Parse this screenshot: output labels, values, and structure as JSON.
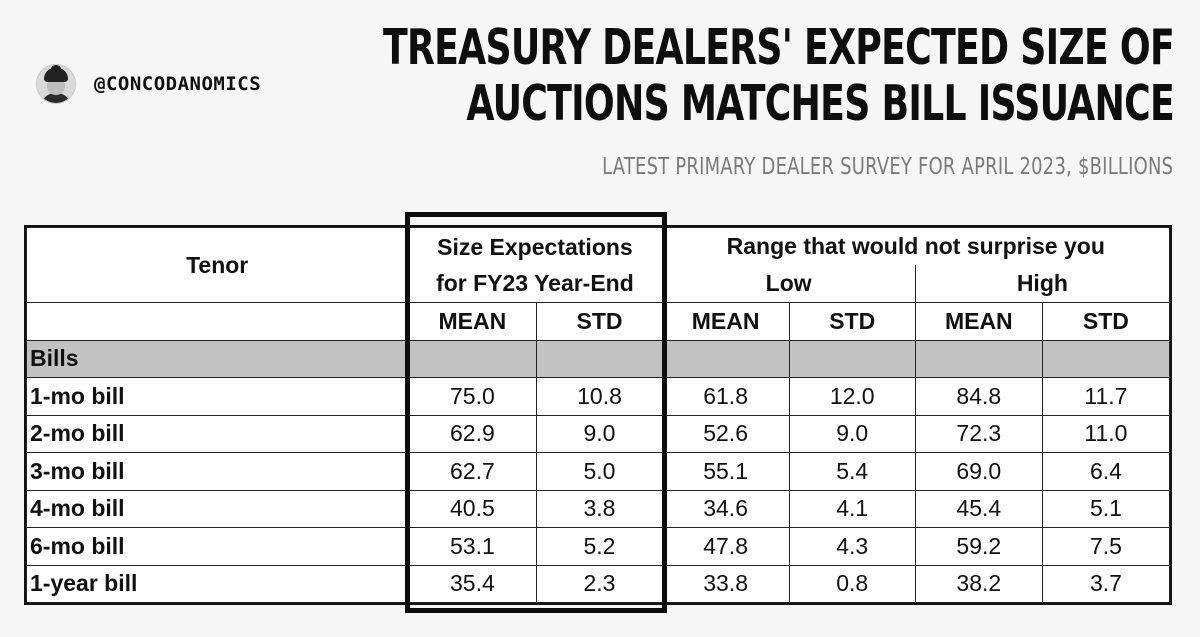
{
  "handle": "@CONCODANOMICS",
  "title_line1": "TREASURY DEALERS' EXPECTED SIZE OF",
  "title_line2": "AUCTIONS MATCHES BILL ISSUANCE",
  "subtitle": "LATEST PRIMARY DEALER SURVEY FOR APRIL 2023, $BILLIONS",
  "table": {
    "tenor_header": "Tenor",
    "size_header_line1": "Size Expectations",
    "size_header_line2": "for FY23 Year-End",
    "range_header": "Range that would not surprise you",
    "low_header": "Low",
    "high_header": "High",
    "mean_label": "MEAN",
    "std_label": "STD",
    "section_label": "Bills",
    "rows": [
      {
        "tenor": "1-mo bill",
        "vals": [
          "75.0",
          "10.8",
          "61.8",
          "12.0",
          "84.8",
          "11.7"
        ]
      },
      {
        "tenor": "2-mo bill",
        "vals": [
          "62.9",
          "9.0",
          "52.6",
          "9.0",
          "72.3",
          "11.0"
        ]
      },
      {
        "tenor": "3-mo bill",
        "vals": [
          "62.7",
          "5.0",
          "55.1",
          "5.4",
          "69.0",
          "6.4"
        ]
      },
      {
        "tenor": "4-mo bill",
        "vals": [
          "40.5",
          "3.8",
          "34.6",
          "4.1",
          "45.4",
          "5.1"
        ]
      },
      {
        "tenor": "6-mo bill",
        "vals": [
          "53.1",
          "5.2",
          "47.8",
          "4.3",
          "59.2",
          "7.5"
        ]
      },
      {
        "tenor": "1-year bill",
        "vals": [
          "35.4",
          "2.3",
          "33.8",
          "0.8",
          "38.2",
          "3.7"
        ]
      }
    ]
  }
}
